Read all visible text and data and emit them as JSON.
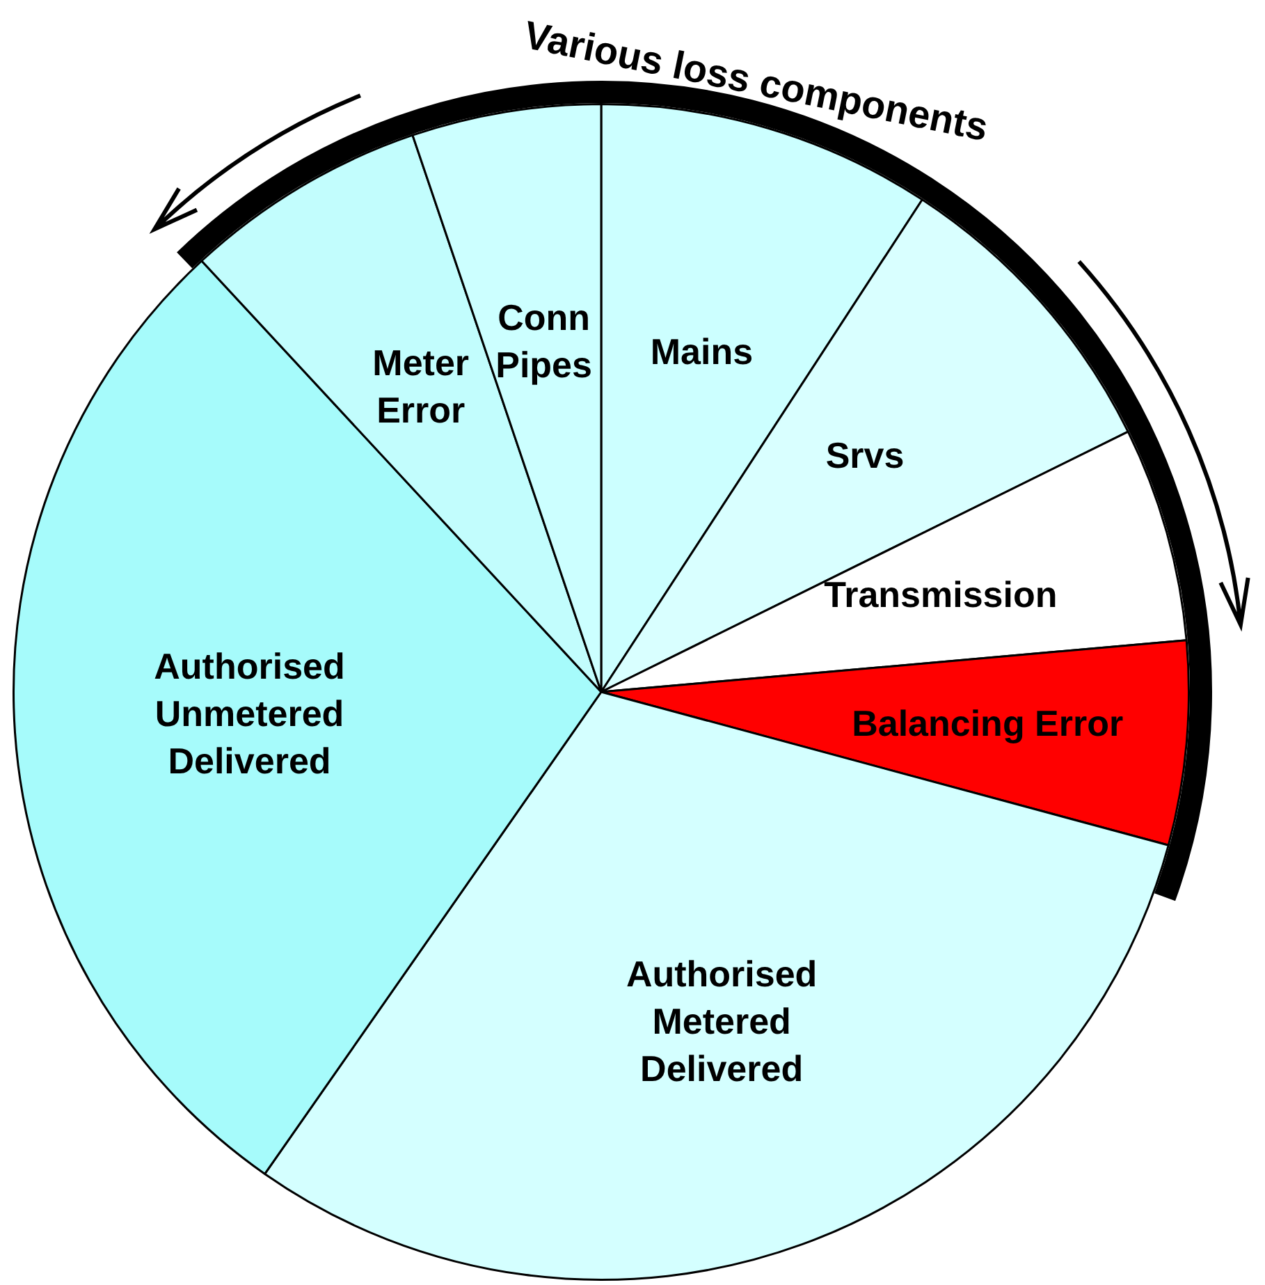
{
  "chart_data": {
    "type": "pie",
    "categories": [
      "Mains",
      "Srvs",
      "Transmission",
      "Balancing Error",
      "Authorised Metered Delivered",
      "Authorised Unmetered Delivered",
      "Meter Error",
      "Conn Pipes"
    ],
    "values": [
      9.2,
      8.5,
      5.9,
      5.6,
      30.5,
      28.4,
      6.7,
      5.2
    ],
    "colors": [
      "#ccffff",
      "#d9ffff",
      "#ffffff",
      "#ff0000",
      "#d4ffff",
      "#a6fbfb",
      "#c2fdfd",
      "#ccffff"
    ],
    "legend": false,
    "annotations": [
      "Various loss components"
    ]
  }
}
